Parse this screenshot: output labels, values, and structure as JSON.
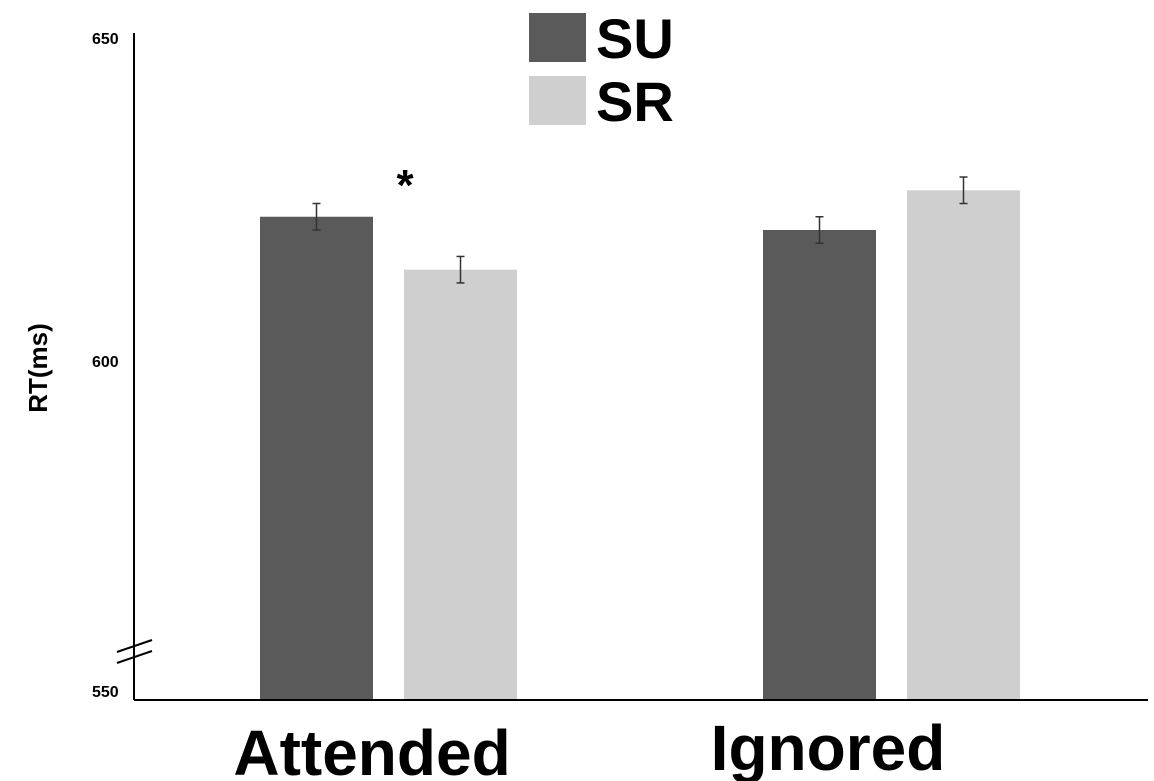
{
  "chart_data": {
    "type": "bar",
    "categories": [
      "Attended",
      "Ignored"
    ],
    "series": [
      {
        "name": "SU",
        "values": [
          623,
          621
        ],
        "errors": [
          2,
          2
        ],
        "color": "#5a5a5a"
      },
      {
        "name": "SR",
        "values": [
          615,
          627
        ],
        "errors": [
          2,
          2
        ],
        "color": "#d0cfd0"
      }
    ],
    "ylabel": "RT(ms)",
    "xlabel": "",
    "ylim": [
      550,
      650
    ],
    "yticks": [
      "650",
      "600",
      "550"
    ],
    "axis_break": true,
    "legend_position": "top-center",
    "grid": false,
    "annotations": [
      {
        "text": "*",
        "category": "Attended"
      }
    ]
  }
}
